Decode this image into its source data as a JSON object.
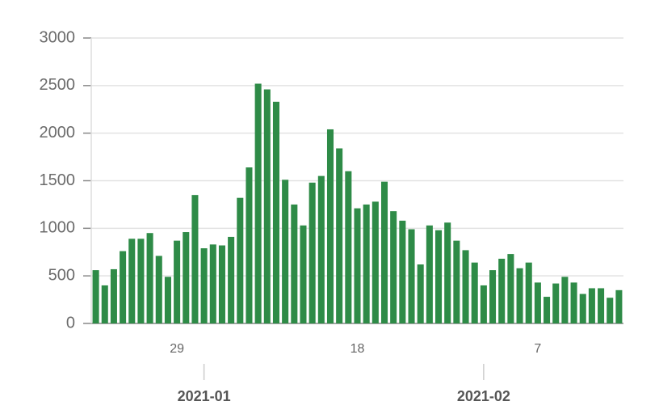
{
  "chart_data": {
    "type": "bar",
    "categories": [
      null,
      null,
      null,
      null,
      null,
      null,
      null,
      null,
      null,
      "29",
      null,
      null,
      null,
      null,
      null,
      null,
      null,
      null,
      null,
      null,
      null,
      null,
      null,
      null,
      null,
      null,
      null,
      null,
      null,
      "18",
      null,
      null,
      null,
      null,
      null,
      null,
      null,
      null,
      null,
      null,
      null,
      null,
      null,
      null,
      null,
      null,
      null,
      null,
      null,
      "7",
      null,
      null,
      null,
      null,
      null,
      null,
      null,
      null,
      null
    ],
    "month_categories": [
      null,
      null,
      null,
      null,
      null,
      null,
      null,
      null,
      null,
      null,
      null,
      null,
      "2021-01",
      null,
      null,
      null,
      null,
      null,
      null,
      null,
      null,
      null,
      null,
      null,
      null,
      null,
      null,
      null,
      null,
      null,
      null,
      null,
      null,
      null,
      null,
      null,
      null,
      null,
      null,
      null,
      null,
      null,
      null,
      "2021-02",
      null,
      null,
      null,
      null,
      null,
      null,
      null,
      null,
      null,
      null,
      null,
      null,
      null,
      null,
      null
    ],
    "values": [
      560,
      400,
      570,
      760,
      890,
      890,
      950,
      710,
      490,
      870,
      960,
      1350,
      790,
      830,
      820,
      910,
      1320,
      1640,
      2520,
      2460,
      2330,
      1510,
      1250,
      1030,
      1480,
      1550,
      2040,
      1840,
      1600,
      1210,
      1250,
      1280,
      1490,
      1180,
      1080,
      990,
      620,
      1030,
      980,
      1060,
      870,
      770,
      640,
      400,
      560,
      680,
      730,
      580,
      640,
      430,
      280,
      420,
      490,
      430,
      310,
      370,
      370,
      270,
      350
    ],
    "color": "#2e8b47",
    "ylim": [
      0,
      3000
    ],
    "yticks": [
      0,
      500,
      1000,
      1500,
      2000,
      2500,
      3000
    ],
    "grid": true
  }
}
